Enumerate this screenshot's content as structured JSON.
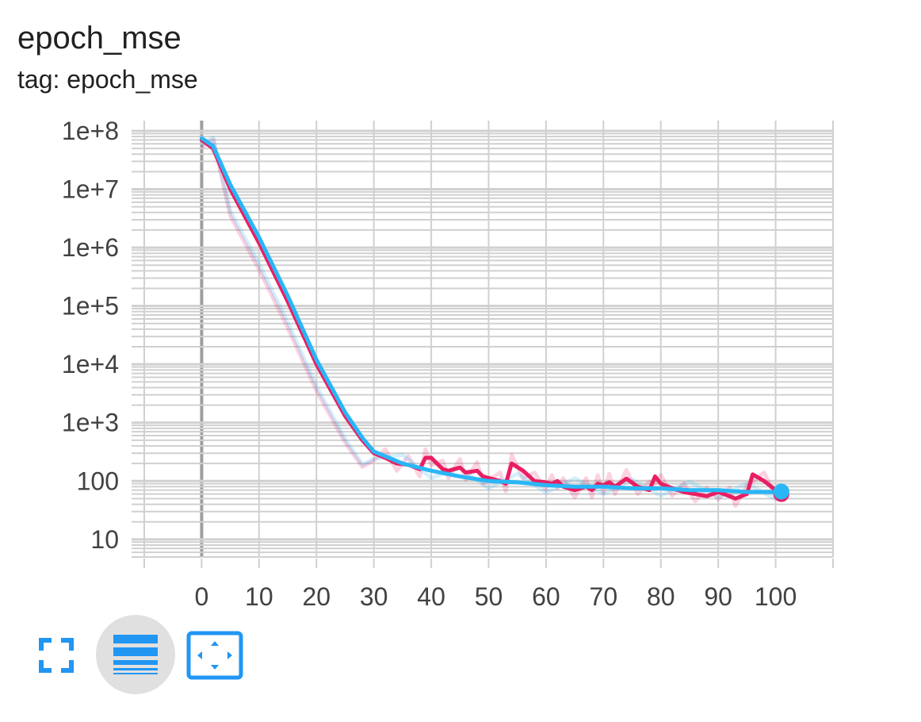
{
  "card": {
    "title": "epoch_mse",
    "subtitle": "tag: epoch_mse"
  },
  "toolbar": {
    "fullscreen_icon": "fullscreen-icon",
    "log_scale_icon": "lines-icon",
    "fit_domain_icon": "fit-domain-icon",
    "log_scale_active": true
  },
  "colors": {
    "series_raw": "#e91e63",
    "series_smooth": "#29b6f6",
    "grid": "#d0d0d0",
    "zero_axis": "#9e9e9e",
    "active_button_bg": "#e0e0e0",
    "icon": "#2196f3"
  },
  "chart_data": {
    "type": "line",
    "xlabel": "",
    "ylabel": "",
    "xlim": [
      -10,
      110
    ],
    "ylim": [
      5,
      150000000
    ],
    "yscale": "log",
    "grid": true,
    "x_ticks": [
      "0",
      "10",
      "20",
      "30",
      "40",
      "50",
      "60",
      "70",
      "80",
      "90",
      "100"
    ],
    "y_ticks": [
      "10",
      "100",
      "1e+3",
      "1e+4",
      "1e+5",
      "1e+6",
      "1e+7",
      "1e+8"
    ],
    "series": [
      {
        "color": "#e91e63",
        "points": [
          [
            0,
            70000000
          ],
          [
            2,
            50000000
          ],
          [
            5,
            10000000
          ],
          [
            10,
            1200000
          ],
          [
            15,
            120000
          ],
          [
            20,
            10000
          ],
          [
            25,
            1300
          ],
          [
            28,
            500
          ],
          [
            30,
            300
          ],
          [
            32,
            250
          ],
          [
            34,
            200
          ],
          [
            36,
            190
          ],
          [
            38,
            160
          ],
          [
            39,
            250
          ],
          [
            40,
            250
          ],
          [
            42,
            160
          ],
          [
            43,
            150
          ],
          [
            45,
            170
          ],
          [
            46,
            140
          ],
          [
            48,
            150
          ],
          [
            49,
            120
          ],
          [
            52,
            100
          ],
          [
            53,
            90
          ],
          [
            54,
            200
          ],
          [
            56,
            150
          ],
          [
            58,
            100
          ],
          [
            60,
            95
          ],
          [
            61,
            90
          ],
          [
            62,
            100
          ],
          [
            63,
            80
          ],
          [
            65,
            70
          ],
          [
            67,
            80
          ],
          [
            68,
            70
          ],
          [
            69,
            90
          ],
          [
            70,
            85
          ],
          [
            71,
            95
          ],
          [
            72,
            80
          ],
          [
            74,
            110
          ],
          [
            76,
            80
          ],
          [
            78,
            70
          ],
          [
            79,
            120
          ],
          [
            80,
            90
          ],
          [
            82,
            75
          ],
          [
            84,
            65
          ],
          [
            86,
            60
          ],
          [
            88,
            55
          ],
          [
            90,
            65
          ],
          [
            92,
            55
          ],
          [
            93,
            50
          ],
          [
            95,
            60
          ],
          [
            96,
            130
          ],
          [
            98,
            100
          ],
          [
            100,
            70
          ],
          [
            101,
            60
          ]
        ]
      },
      {
        "color": "#29b6f6",
        "points": [
          [
            0,
            75000000
          ],
          [
            2,
            55000000
          ],
          [
            5,
            12000000
          ],
          [
            10,
            1500000
          ],
          [
            15,
            150000
          ],
          [
            20,
            12000
          ],
          [
            25,
            1500
          ],
          [
            28,
            550
          ],
          [
            30,
            320
          ],
          [
            35,
            200
          ],
          [
            40,
            150
          ],
          [
            45,
            120
          ],
          [
            50,
            100
          ],
          [
            55,
            95
          ],
          [
            60,
            85
          ],
          [
            65,
            80
          ],
          [
            70,
            80
          ],
          [
            75,
            75
          ],
          [
            80,
            75
          ],
          [
            85,
            70
          ],
          [
            90,
            70
          ],
          [
            95,
            65
          ],
          [
            100,
            65
          ],
          [
            101,
            66
          ]
        ]
      }
    ]
  }
}
